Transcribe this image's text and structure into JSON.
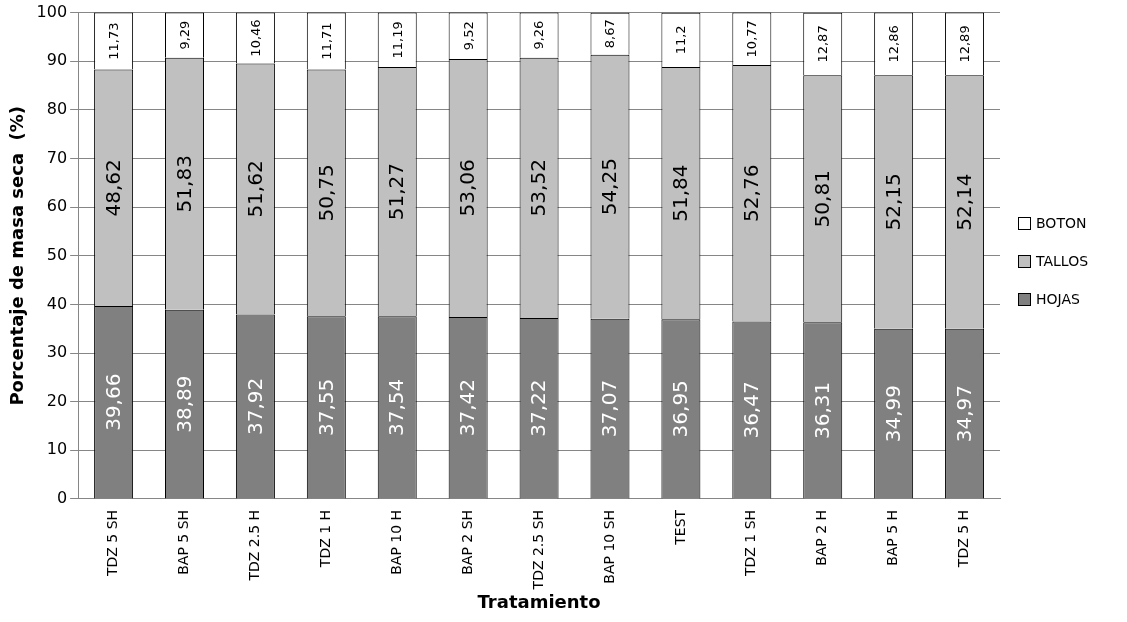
{
  "chart_data": {
    "type": "bar",
    "stacked": true,
    "xlabel": "Tratamiento",
    "ylabel": "Porcentaje de masa seca  (%)",
    "categories": [
      "TDZ 5 SH",
      "BAP 5 SH",
      "TDZ 2.5 H",
      "TDZ 1 H",
      "BAP 10 H",
      "BAP 2 SH",
      "TDZ 2.5 SH",
      "BAP 10 SH",
      "TEST",
      "TDZ 1 SH",
      "BAP 2 H",
      "BAP 5 H",
      "TDZ 5 H"
    ],
    "series": [
      {
        "name": "HOJAS",
        "color": "#808080",
        "values": [
          39.66,
          38.89,
          37.92,
          37.55,
          37.54,
          37.42,
          37.22,
          37.07,
          36.95,
          36.47,
          36.31,
          34.99,
          34.97
        ],
        "value_labels": [
          "39,66",
          "38,89",
          "37,92",
          "37,55",
          "37,54",
          "37,42",
          "37,22",
          "37,07",
          "36,95",
          "36,47",
          "36,31",
          "34,99",
          "34,97"
        ]
      },
      {
        "name": "TALLOS",
        "color": "#c0c0c0",
        "values": [
          48.62,
          51.83,
          51.62,
          50.75,
          51.27,
          53.06,
          53.52,
          54.25,
          51.84,
          52.76,
          50.81,
          52.15,
          52.14
        ],
        "value_labels": [
          "48,62",
          "51,83",
          "51,62",
          "50,75",
          "51,27",
          "53,06",
          "53,52",
          "54,25",
          "51,84",
          "52,76",
          "50,81",
          "52,15",
          "52,14"
        ]
      },
      {
        "name": "BOTON",
        "color": "#ffffff",
        "values": [
          11.73,
          9.29,
          10.46,
          11.71,
          11.19,
          9.52,
          9.26,
          8.67,
          11.2,
          10.77,
          12.87,
          12.86,
          12.89
        ],
        "value_labels": [
          "11,73",
          "9,29",
          "10,46",
          "11,71",
          "11,19",
          "9,52",
          "9,26",
          "8,67",
          "11,2",
          "10,77",
          "12,87",
          "12,86",
          "12,89"
        ]
      }
    ],
    "ylim": [
      0,
      100
    ],
    "yticks": [
      0,
      10,
      20,
      30,
      40,
      50,
      60,
      70,
      80,
      90,
      100
    ],
    "grid": "y",
    "legend": "right"
  }
}
